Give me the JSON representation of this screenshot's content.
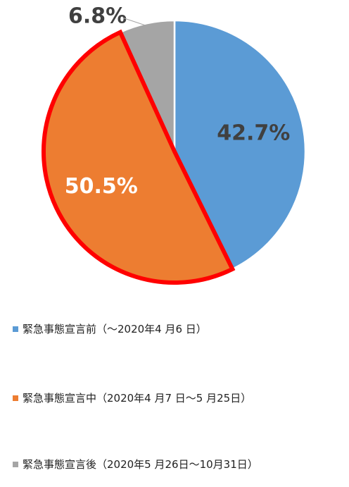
{
  "chart_data": {
    "type": "pie",
    "slices": [
      {
        "name": "緊急事態宣言前（～2020年4 月6 日）",
        "value": 42.7,
        "label": "42.7%",
        "color": "#5b9bd5",
        "label_color": "#404040"
      },
      {
        "name": "緊急事態宣言中（2020年4 月7 日～5 月25日）",
        "value": 50.5,
        "label": "50.5%",
        "color": "#ed7d31",
        "label_color": "#ffffff",
        "highlighted": true,
        "highlight_color": "#ff0000"
      },
      {
        "name": "緊急事態宣言後（2020年5 月26日～10月31日）",
        "value": 6.8,
        "label": "6.8%",
        "color": "#a5a5a5",
        "label_color": "#404040"
      }
    ],
    "start_angle_deg": 0,
    "direction": "clockwise",
    "legend_position": "bottom"
  }
}
